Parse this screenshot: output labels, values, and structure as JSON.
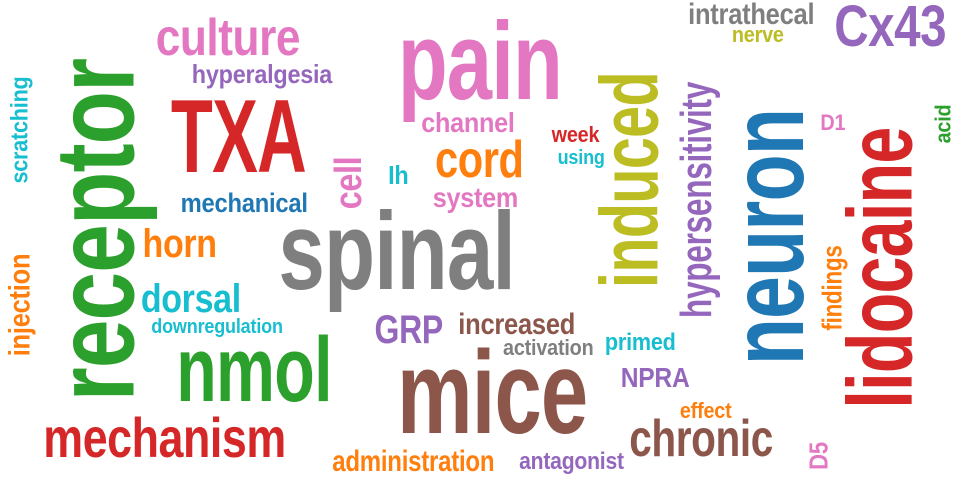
{
  "colors": {
    "green": "#2ca02c",
    "pink": "#e377c2",
    "red": "#d62728",
    "purple": "#9467bd",
    "gray": "#7f7f7f",
    "olive": "#bcbd22",
    "blue": "#1f77b4",
    "brown": "#8c564b",
    "orange": "#ff7f0e",
    "cyan": "#17becf"
  },
  "words": [
    {
      "text": "receptor",
      "color": "green"
    },
    {
      "text": "scratching",
      "color": "cyan"
    },
    {
      "text": "injection",
      "color": "orange"
    },
    {
      "text": "culture",
      "color": "pink"
    },
    {
      "text": "hyperalgesia",
      "color": "purple"
    },
    {
      "text": "TXA",
      "color": "red"
    },
    {
      "text": "cell",
      "color": "pink"
    },
    {
      "text": "mechanical",
      "color": "blue"
    },
    {
      "text": "horn",
      "color": "orange"
    },
    {
      "text": "dorsal",
      "color": "cyan"
    },
    {
      "text": "downregulation",
      "color": "cyan"
    },
    {
      "text": "nmol",
      "color": "green"
    },
    {
      "text": "mechanism",
      "color": "red"
    },
    {
      "text": "spinal",
      "color": "gray"
    },
    {
      "text": "pain",
      "color": "pink"
    },
    {
      "text": "channel",
      "color": "pink"
    },
    {
      "text": "cord",
      "color": "orange"
    },
    {
      "text": "Ih",
      "color": "cyan"
    },
    {
      "text": "system",
      "color": "pink"
    },
    {
      "text": "week",
      "color": "red"
    },
    {
      "text": "using",
      "color": "cyan"
    },
    {
      "text": "GRP",
      "color": "purple"
    },
    {
      "text": "increased",
      "color": "brown"
    },
    {
      "text": "activation",
      "color": "gray"
    },
    {
      "text": "mice",
      "color": "brown"
    },
    {
      "text": "administration",
      "color": "orange"
    },
    {
      "text": "antagonist",
      "color": "purple"
    },
    {
      "text": "induced",
      "color": "olive"
    },
    {
      "text": "primed",
      "color": "cyan"
    },
    {
      "text": "NPRA",
      "color": "purple"
    },
    {
      "text": "effect",
      "color": "orange"
    },
    {
      "text": "chronic",
      "color": "brown"
    },
    {
      "text": "intrathecal",
      "color": "gray"
    },
    {
      "text": "nerve",
      "color": "olive"
    },
    {
      "text": "hypersensitivity",
      "color": "purple"
    },
    {
      "text": "neuron",
      "color": "blue"
    },
    {
      "text": "D5",
      "color": "pink"
    },
    {
      "text": "Cx43",
      "color": "purple"
    },
    {
      "text": "D1",
      "color": "pink"
    },
    {
      "text": "findings",
      "color": "orange"
    },
    {
      "text": "lidocaine",
      "color": "red"
    },
    {
      "text": "acid",
      "color": "green"
    }
  ]
}
